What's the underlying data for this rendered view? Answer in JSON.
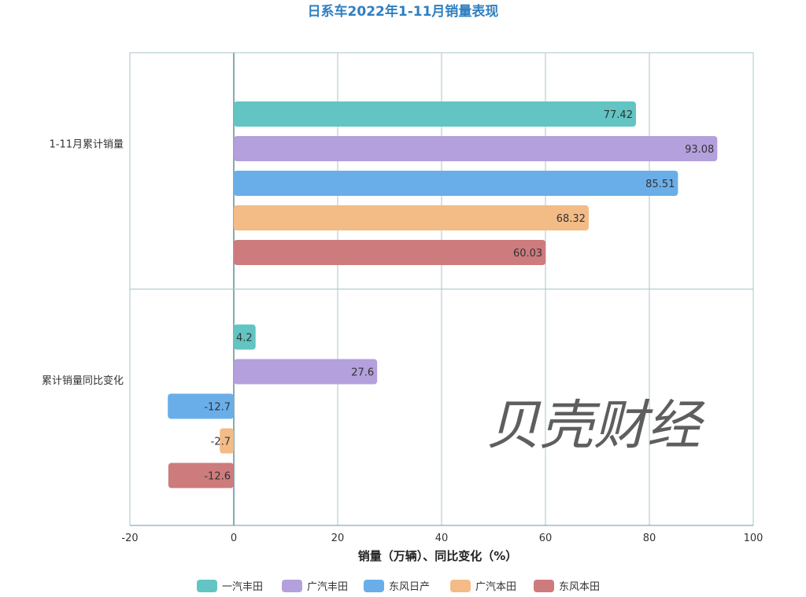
{
  "chart_data": {
    "type": "bar",
    "orientation": "horizontal",
    "title": "日系车2022年1-11月销量表现",
    "xlabel": "销量（万辆）、同比变化（%）",
    "ylabel": "",
    "categories": [
      "1-11月累计销量",
      "累计销量同比变化"
    ],
    "xlim": [
      -20,
      100
    ],
    "xticks": [
      -20,
      0,
      20,
      40,
      60,
      80,
      100
    ],
    "grid": true,
    "legend_position": "bottom",
    "series": [
      {
        "name": "一汽丰田",
        "color": "#62c4c3",
        "values": [
          77.42,
          4.2
        ],
        "labels": [
          "77.42",
          "4.2"
        ]
      },
      {
        "name": "广汽丰田",
        "color": "#b3a0dc",
        "values": [
          93.08,
          27.6
        ],
        "labels": [
          "93.08",
          "27.6"
        ]
      },
      {
        "name": "东风日产",
        "color": "#6aaee9",
        "values": [
          85.51,
          -12.7
        ],
        "labels": [
          "85.51",
          "-12.7"
        ]
      },
      {
        "name": "广汽本田",
        "color": "#f3bb86",
        "values": [
          68.32,
          -2.7
        ],
        "labels": [
          "68.32",
          "-2.7"
        ]
      },
      {
        "name": "东风本田",
        "color": "#cd7b7d",
        "values": [
          60.03,
          -12.6
        ],
        "labels": [
          "60.03",
          "-12.6"
        ]
      }
    ]
  },
  "watermark": "贝壳财经"
}
